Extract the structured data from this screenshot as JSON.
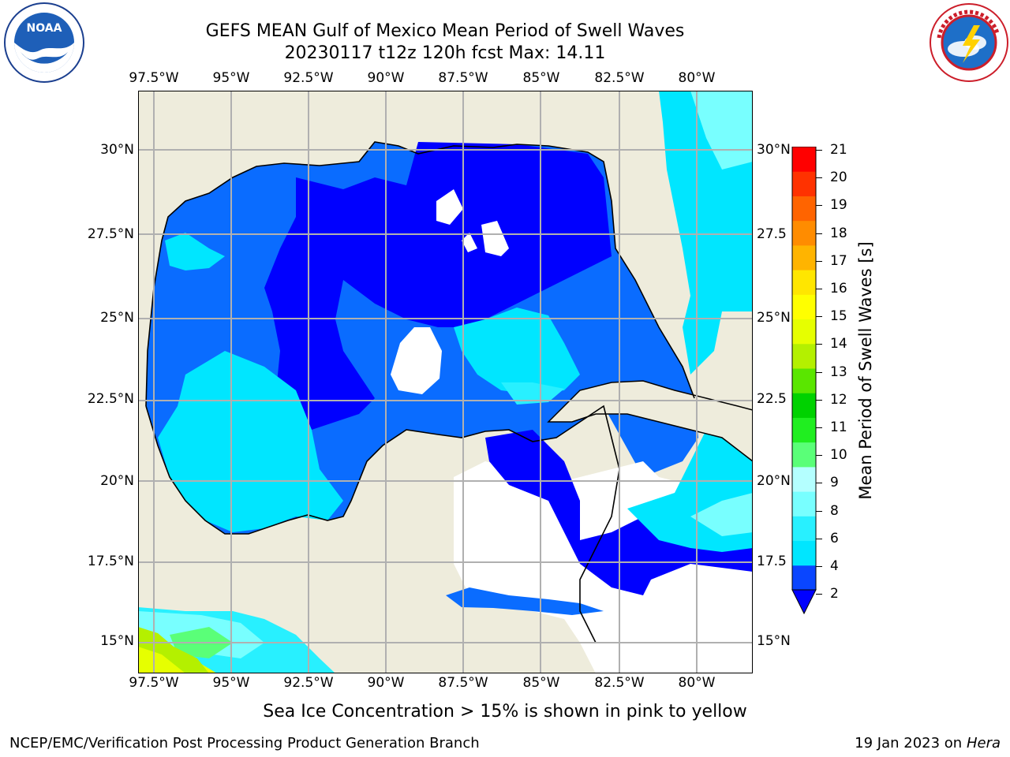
{
  "header": {
    "title_line1": "GEFS MEAN Gulf of Mexico Mean Period of Swell Waves",
    "title_line2": "20230117 t12z 120h fcst   Max: 14.11"
  },
  "logos": {
    "left_text": "NOAA",
    "right_text": "NATIONAL WEATHER SERVICE"
  },
  "map": {
    "lon_ticks": [
      "97.5°W",
      "95°W",
      "92.5°W",
      "90°W",
      "87.5°W",
      "85°W",
      "82.5°W",
      "80°W"
    ],
    "lat_ticks_left": [
      "30°N",
      "27.5°N",
      "25°N",
      "22.5°N",
      "20°N",
      "17.5°N",
      "15°N"
    ],
    "lat_ticks_right": [
      "30°N",
      "27.5",
      "25°N",
      "22.5",
      "20°N",
      "17.5",
      "15°N"
    ],
    "colors": {
      "land": "#eeecdc",
      "grid": "#b0b0b0"
    }
  },
  "colorbar": {
    "label": "Mean Period of Swell Waves [s]",
    "ticks": [
      "21",
      "20",
      "19",
      "18",
      "17",
      "16",
      "15",
      "14",
      "13",
      "12",
      "11",
      "10",
      "9",
      "8",
      "6",
      "4",
      "2"
    ],
    "colors_low_to_high": [
      "#0a46ff",
      "#00e6ff",
      "#28f0ff",
      "#78ffff",
      "#b4ffff",
      "#5aff78",
      "#20ee20",
      "#00d200",
      "#5ae600",
      "#b4f000",
      "#e6ff00",
      "#ffff00",
      "#ffe600",
      "#ffb400",
      "#ff8c00",
      "#ff6400",
      "#ff3200",
      "#ff0000"
    ],
    "extend_color": "#0000ff"
  },
  "notes": {
    "sea_ice": "Sea Ice Concentration > 15% is shown in pink to yellow"
  },
  "footer": {
    "left": "NCEP/EMC/Verification Post Processing Product Generation Branch",
    "right_date": "19 Jan 2023 on ",
    "right_host": "Hera"
  }
}
